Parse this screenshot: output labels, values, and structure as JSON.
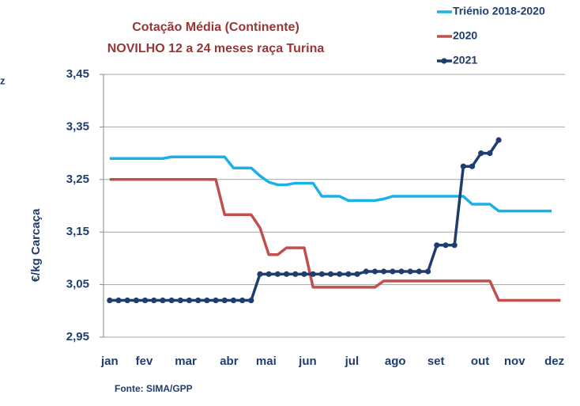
{
  "chart_data": {
    "type": "line",
    "title": "Cotação Média (Continente)",
    "subtitle": "NOVILHO 12 a 24 meses raça Turina",
    "ylabel": "€/kg Carcaça",
    "source": "Fonte:  SIMA/GPP",
    "annotations": [
      "z"
    ],
    "x": [
      1,
      2,
      3,
      4,
      5,
      6,
      7,
      8,
      9,
      10,
      11,
      12,
      13,
      14,
      15,
      16,
      17,
      18,
      19,
      20,
      21,
      22,
      23,
      24,
      25,
      26,
      27,
      28,
      29,
      30,
      31,
      32,
      33,
      34,
      35,
      36,
      37,
      38,
      39,
      40,
      41,
      42,
      43,
      44,
      45,
      46,
      47,
      48,
      49,
      50,
      51,
      52
    ],
    "xlim": [
      0.3,
      52.5
    ],
    "xticks": [
      {
        "value": 1,
        "label": "jan"
      },
      {
        "value": 4.9,
        "label": "fev"
      },
      {
        "value": 9.6,
        "label": "mar"
      },
      {
        "value": 14.5,
        "label": "abr"
      },
      {
        "value": 18.7,
        "label": "mai"
      },
      {
        "value": 23.4,
        "label": "jun"
      },
      {
        "value": 28.4,
        "label": "jul"
      },
      {
        "value": 33.3,
        "label": "ago"
      },
      {
        "value": 37.9,
        "label": "set"
      },
      {
        "value": 42.9,
        "label": "out"
      },
      {
        "value": 46.8,
        "label": "nov"
      },
      {
        "value": 51.3,
        "label": "dez"
      }
    ],
    "ylim": [
      2.95,
      3.45
    ],
    "yticks": [
      {
        "value": 2.95,
        "label": "2,95"
      },
      {
        "value": 3.05,
        "label": "3,05"
      },
      {
        "value": 3.15,
        "label": "3,15"
      },
      {
        "value": 3.25,
        "label": "3,25"
      },
      {
        "value": 3.35,
        "label": "3,35"
      },
      {
        "value": 3.45,
        "label": "3,45"
      }
    ],
    "grid": true,
    "legend": "top-right",
    "series": [
      {
        "name": "Triénio 2018-2020",
        "color": "#1ab0e8",
        "marker": false,
        "values": [
          3.29,
          3.29,
          3.29,
          3.29,
          3.29,
          3.29,
          3.29,
          3.293,
          3.293,
          3.293,
          3.293,
          3.293,
          3.293,
          3.293,
          3.272,
          3.272,
          3.272,
          3.257,
          3.245,
          3.24,
          3.24,
          3.243,
          3.243,
          3.243,
          3.218,
          3.218,
          3.218,
          3.21,
          3.21,
          3.21,
          3.21,
          3.213,
          3.218,
          3.218,
          3.218,
          3.218,
          3.218,
          3.218,
          3.218,
          3.218,
          3.218,
          3.203,
          3.203,
          3.203,
          3.19,
          3.19,
          3.19,
          3.19,
          3.19,
          3.19,
          3.19,
          null
        ]
      },
      {
        "name": "2020",
        "color": "#c0504d",
        "marker": false,
        "values": [
          3.25,
          3.25,
          3.25,
          3.25,
          3.25,
          3.25,
          3.25,
          3.25,
          3.25,
          3.25,
          3.25,
          3.25,
          3.25,
          3.183,
          3.183,
          3.183,
          3.183,
          3.158,
          3.107,
          3.107,
          3.12,
          3.12,
          3.12,
          3.045,
          3.045,
          3.045,
          3.045,
          3.045,
          3.045,
          3.045,
          3.045,
          3.057,
          3.057,
          3.057,
          3.057,
          3.057,
          3.057,
          3.057,
          3.057,
          3.057,
          3.057,
          3.057,
          3.057,
          3.057,
          3.02,
          3.02,
          3.02,
          3.02,
          3.02,
          3.02,
          3.02,
          3.02
        ]
      },
      {
        "name": "2021",
        "color": "#1f3d6e",
        "marker": true,
        "values": [
          3.02,
          3.02,
          3.02,
          3.02,
          3.02,
          3.02,
          3.02,
          3.02,
          3.02,
          3.02,
          3.02,
          3.02,
          3.02,
          3.02,
          3.02,
          3.02,
          3.02,
          3.07,
          3.07,
          3.07,
          3.07,
          3.07,
          3.07,
          3.07,
          3.07,
          3.07,
          3.07,
          3.07,
          3.07,
          3.075,
          3.075,
          3.075,
          3.075,
          3.075,
          3.075,
          3.075,
          3.075,
          3.125,
          3.125,
          3.125,
          3.275,
          3.275,
          3.3,
          3.3,
          3.325,
          null,
          null,
          null,
          null,
          null,
          null,
          null
        ]
      }
    ]
  }
}
